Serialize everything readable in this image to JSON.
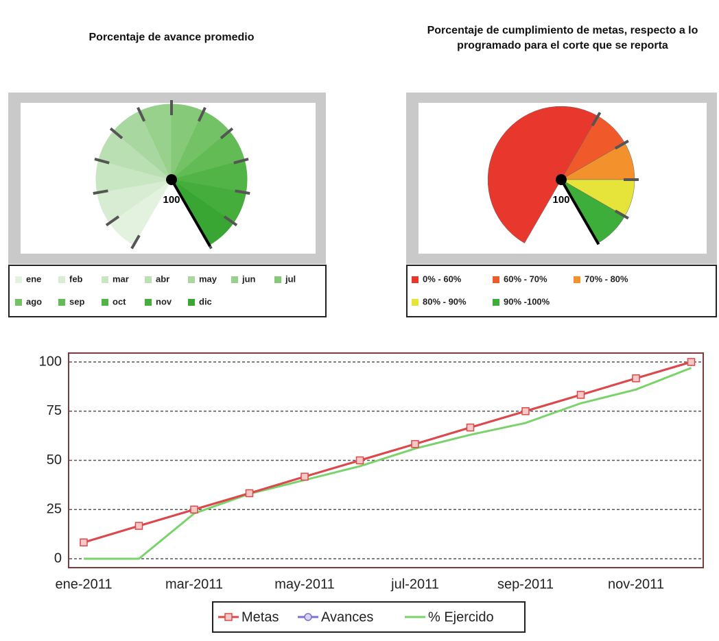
{
  "chart_data": [
    {
      "type": "gauge",
      "title": "Porcentaje de avance promedio",
      "value": 100,
      "range": [
        0,
        100
      ],
      "legend": [
        {
          "name": "ene",
          "color": "#e3f2df"
        },
        {
          "name": "feb",
          "color": "#d7ecd2"
        },
        {
          "name": "mar",
          "color": "#c9e6c3"
        },
        {
          "name": "abr",
          "color": "#b9dfb2"
        },
        {
          "name": "may",
          "color": "#a8d89f"
        },
        {
          "name": "jun",
          "color": "#97d18c"
        },
        {
          "name": "jul",
          "color": "#85c979"
        },
        {
          "name": "ago",
          "color": "#73c266"
        },
        {
          "name": "sep",
          "color": "#62bb55"
        },
        {
          "name": "oct",
          "color": "#52b446"
        },
        {
          "name": "nov",
          "color": "#45ad3b"
        },
        {
          "name": "dic",
          "color": "#39a532"
        }
      ]
    },
    {
      "type": "gauge",
      "title": "Porcentaje de cumplimiento de metas, respecto a lo programado para el corte que se reporta",
      "value": 100,
      "range": [
        0,
        100
      ],
      "bands": [
        {
          "name": "0% - 60%",
          "color": "#e8372c",
          "from": 0,
          "to": 60
        },
        {
          "name": "60% - 70%",
          "color": "#f05a2a",
          "from": 60,
          "to": 70
        },
        {
          "name": "70% - 80%",
          "color": "#f3922d",
          "from": 70,
          "to": 80
        },
        {
          "name": "80% - 90%",
          "color": "#e6e33a",
          "from": 80,
          "to": 90
        },
        {
          "name": "90% -100%",
          "color": "#3dae3a",
          "from": 90,
          "to": 100
        }
      ]
    },
    {
      "type": "line",
      "categories": [
        "ene-2011",
        null,
        "mar-2011",
        null,
        "may-2011",
        null,
        "jul-2011",
        null,
        "sep-2011",
        null,
        "nov-2011",
        null
      ],
      "series": [
        {
          "name": "Metas",
          "color": "#e04848",
          "marker": "square",
          "values": [
            8.3,
            16.7,
            25,
            33.3,
            41.7,
            50,
            58.3,
            66.7,
            75,
            83.3,
            91.7,
            100
          ]
        },
        {
          "name": "Avances",
          "color": "#7b6fd0",
          "marker": "circle",
          "values": [
            8.3,
            16.7,
            25,
            33.3,
            41.7,
            50,
            58.3,
            66.7,
            75,
            83.3,
            91.7,
            100
          ]
        },
        {
          "name": "% Ejercido",
          "color": "#7ad36a",
          "marker": "none",
          "values": [
            0,
            0,
            23,
            33,
            40,
            47,
            56,
            63,
            69,
            79,
            86,
            97
          ]
        }
      ],
      "ylim": [
        0,
        100
      ],
      "yticks": [
        0,
        25,
        50,
        75,
        100
      ],
      "grid": true
    }
  ]
}
